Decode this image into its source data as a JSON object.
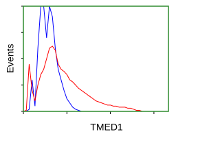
{
  "chart_data": {
    "type": "line",
    "ylabel": "Events",
    "xlabel": "TMED1",
    "x": [
      0,
      2,
      4,
      6,
      8,
      10,
      12,
      14,
      16,
      18,
      20,
      22,
      24,
      26,
      28,
      30,
      32,
      34,
      36,
      38,
      40,
      42,
      44,
      46,
      48,
      50,
      52,
      54,
      56,
      58,
      60,
      62,
      64,
      66,
      68,
      70,
      72,
      74,
      76,
      78,
      80,
      82,
      84,
      86,
      88,
      90,
      92,
      94,
      96,
      98
    ],
    "series": [
      {
        "color": "#0000ff",
        "values": [
          0,
          0,
          2,
          30,
          5,
          60,
          100,
          100,
          70,
          100,
          90,
          60,
          40,
          30,
          20,
          12,
          8,
          4,
          2,
          1,
          0,
          0,
          0,
          0,
          0,
          0,
          0,
          0,
          0,
          0,
          0,
          0,
          0,
          0,
          0,
          0,
          0,
          0,
          0,
          0,
          0,
          0,
          0,
          0,
          0,
          0,
          0,
          0,
          0,
          0
        ]
      },
      {
        "color": "#ff0000",
        "values": [
          0,
          1,
          45,
          20,
          10,
          25,
          35,
          40,
          50,
          60,
          62,
          58,
          45,
          40,
          38,
          35,
          30,
          28,
          25,
          22,
          20,
          18,
          16,
          14,
          12,
          10,
          9,
          8,
          7,
          6,
          6,
          5,
          5,
          4,
          4,
          4,
          3,
          3,
          2,
          1,
          1,
          0,
          0,
          0,
          0,
          0,
          0,
          0,
          0,
          0
        ]
      }
    ],
    "xlim": [
      0,
      100
    ],
    "ylim": [
      0,
      100
    ],
    "xticks": [
      0,
      30,
      60,
      90
    ],
    "yticks": [
      0,
      25,
      50,
      75,
      100
    ],
    "frame_color": "#2e8b2e"
  }
}
